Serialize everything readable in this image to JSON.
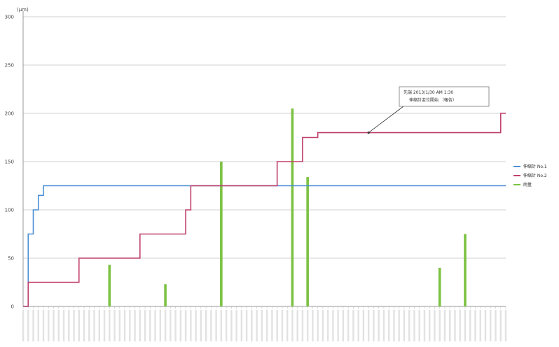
{
  "chart_data": {
    "type": "line",
    "ylabel": "(μm)",
    "ylim": [
      0,
      300
    ],
    "yticks": [
      {
        "value": 0,
        "label": "0"
      },
      {
        "value": 50,
        "label": "50"
      },
      {
        "value": 100,
        "label": "100"
      },
      {
        "value": 150,
        "label": "150"
      },
      {
        "value": 200,
        "label": "200"
      },
      {
        "value": 250,
        "label": "250"
      },
      {
        "value": 300,
        "label": "300"
      }
    ],
    "grid": true,
    "legend_position": "right",
    "x_count": 96,
    "x_labels_note": "date-time tick labels are too small to read",
    "series": [
      {
        "name": "伸縮計 No.1",
        "type": "step",
        "color": "#4a8fd4",
        "points": [
          [
            0,
            0
          ],
          [
            1,
            75
          ],
          [
            2,
            100
          ],
          [
            3,
            115
          ],
          [
            4,
            125
          ],
          [
            95,
            125
          ]
        ]
      },
      {
        "name": "伸縮計 No.2",
        "type": "step",
        "color": "#c0406a",
        "points": [
          [
            0,
            0
          ],
          [
            1,
            25
          ],
          [
            10,
            25
          ],
          [
            11,
            50
          ],
          [
            22,
            50
          ],
          [
            23,
            75
          ],
          [
            31,
            75
          ],
          [
            32,
            100
          ],
          [
            33,
            125
          ],
          [
            49,
            125
          ],
          [
            50,
            150
          ],
          [
            54,
            150
          ],
          [
            55,
            175
          ],
          [
            57,
            175
          ],
          [
            58,
            180
          ],
          [
            93,
            180
          ],
          [
            94,
            200
          ],
          [
            95,
            200
          ]
        ]
      },
      {
        "name": "雨量",
        "type": "bar",
        "color": "#7cc242",
        "bars": [
          [
            17,
            43
          ],
          [
            28,
            23
          ],
          [
            39,
            150
          ],
          [
            53,
            205
          ],
          [
            56,
            134
          ],
          [
            82,
            40
          ],
          [
            87,
            75
          ]
        ]
      }
    ],
    "annotation": {
      "line1": "先端 2013/1/30 AM 1:30",
      "line2": "伸縮計変位開始 （報告）",
      "arrow_to": [
        68,
        180
      ]
    }
  }
}
